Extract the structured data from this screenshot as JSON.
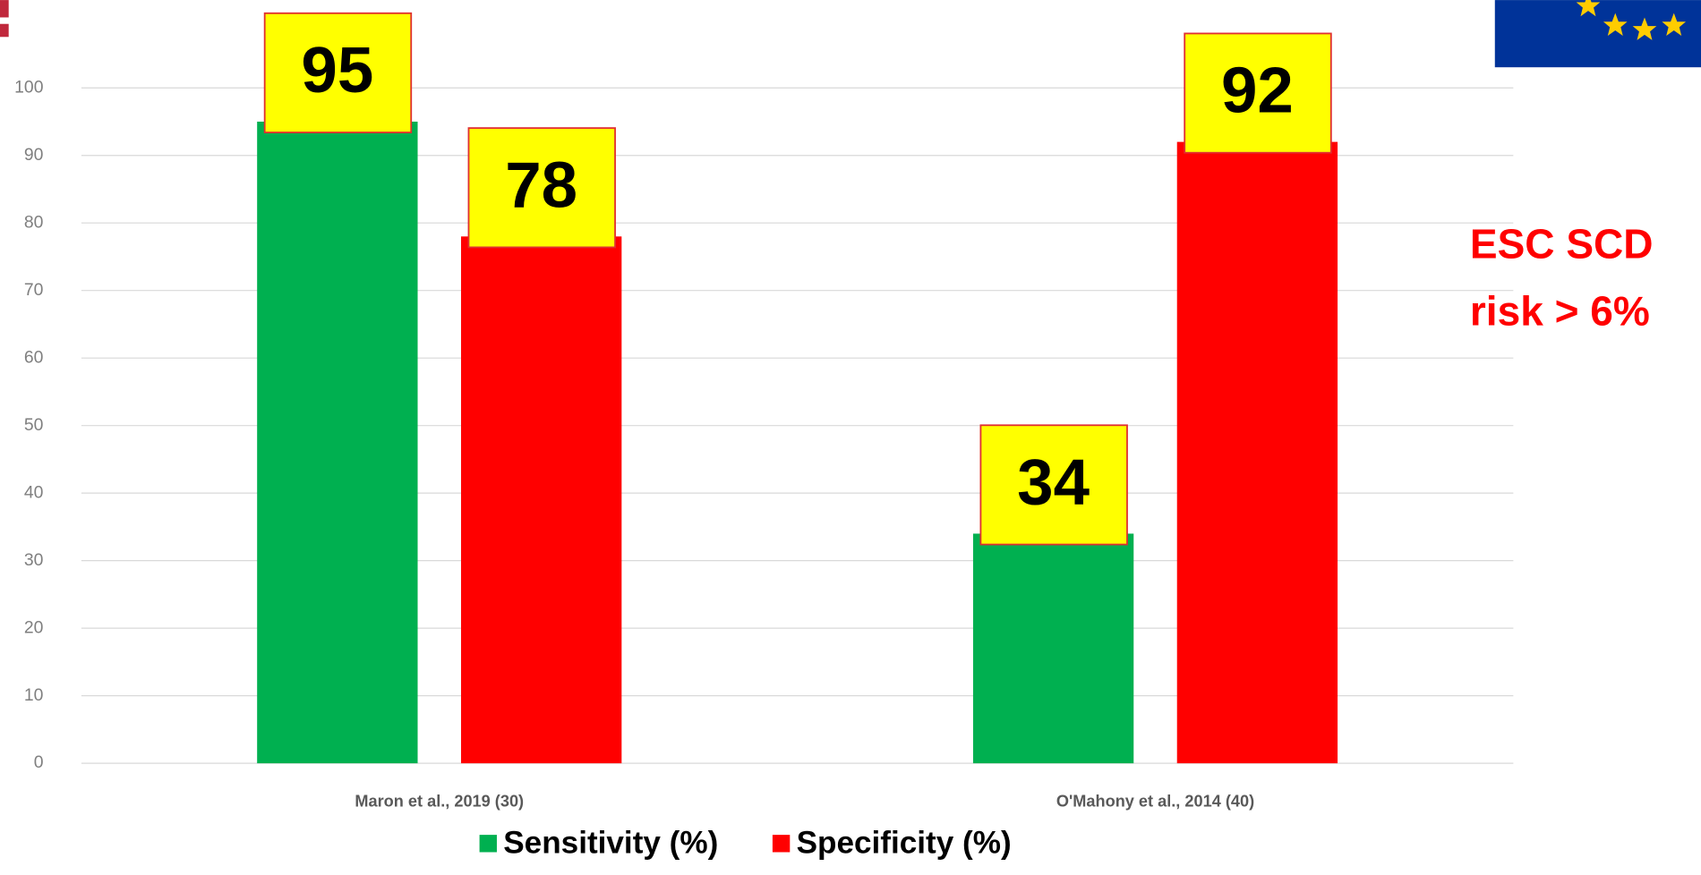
{
  "chart_data": {
    "type": "bar",
    "categories": [
      "Maron et al., 2019 (30)",
      "O'Mahony et al., 2014 (40)"
    ],
    "series": [
      {
        "name": "Sensitivity (%)",
        "color": "#00b050",
        "values": [
          95,
          34
        ]
      },
      {
        "name": "Specificity (%)",
        "color": "#ff0000",
        "values": [
          78,
          92
        ]
      }
    ],
    "ylim": [
      0,
      100
    ],
    "yticks": [
      0,
      10,
      20,
      30,
      40,
      50,
      60,
      70,
      80,
      90,
      100
    ],
    "grid": true,
    "legend": "bottom",
    "annotation": [
      "ESC SCD",
      "risk > 6%"
    ]
  }
}
